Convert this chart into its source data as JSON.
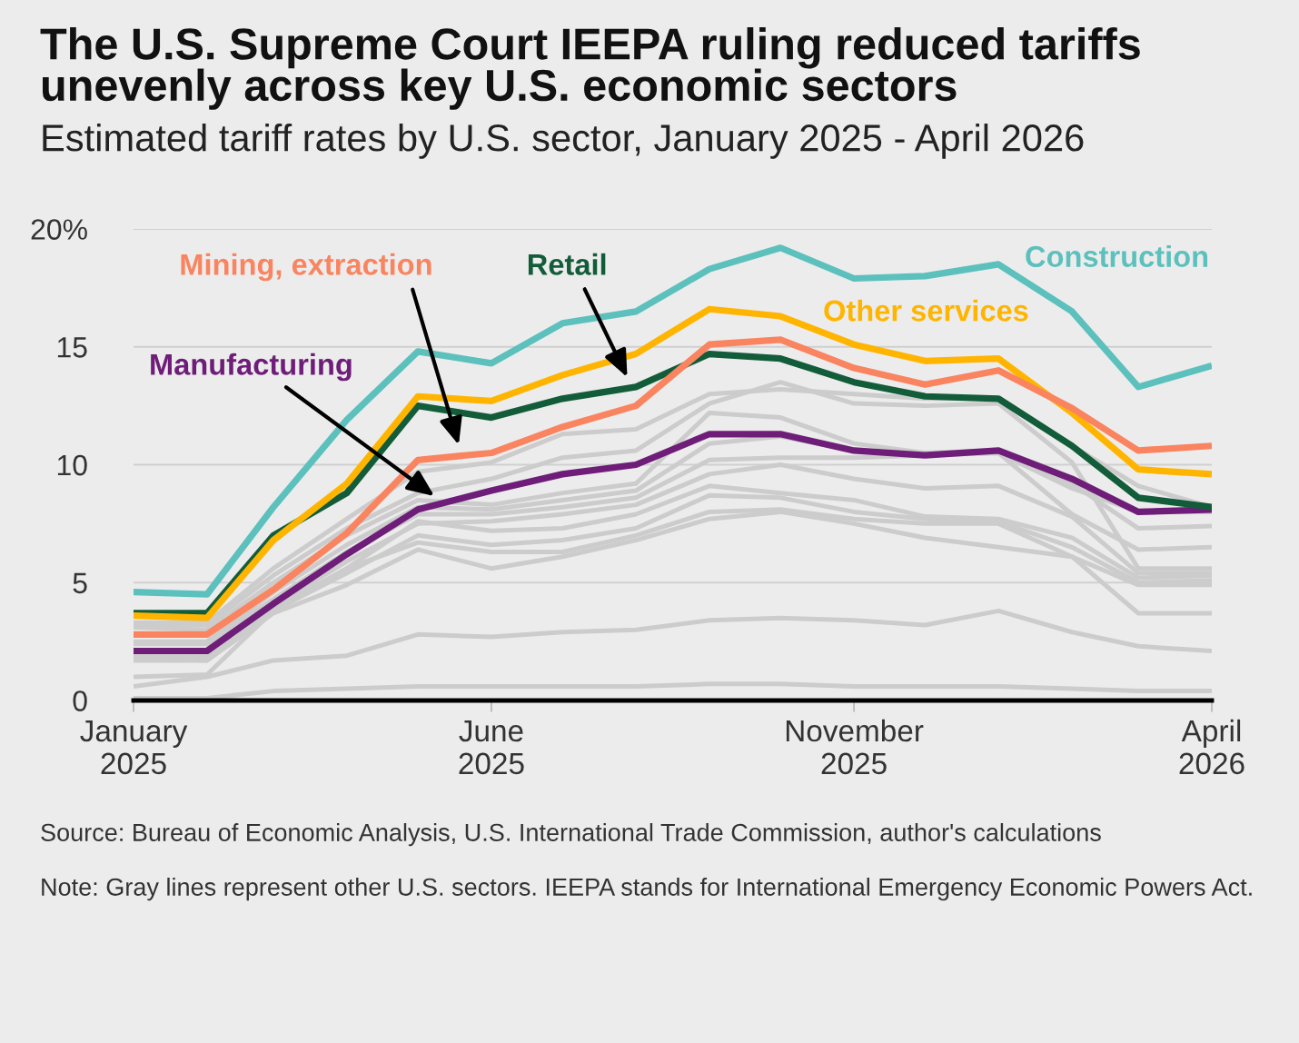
{
  "chart_data": {
    "type": "line",
    "title": "The U.S. Supreme Court IEEPA ruling reduced tariffs unevenly across key U.S. economic sectors",
    "subtitle": "Estimated tariff rates by U.S. sector, January 2025 - April 2026",
    "x": [
      "2025-01",
      "2025-02",
      "2025-03",
      "2025-04",
      "2025-05",
      "2025-06",
      "2025-07",
      "2025-08",
      "2025-09",
      "2025-10",
      "2025-11",
      "2025-12",
      "2026-01",
      "2026-02",
      "2026-03",
      "2026-04"
    ],
    "xlim": [
      "2025-01",
      "2026-04"
    ],
    "xticks": [
      {
        "value": "2025-01",
        "label": "January\n2025"
      },
      {
        "value": "2025-06",
        "label": "June\n2025"
      },
      {
        "value": "2025-11",
        "label": "November\n2025"
      },
      {
        "value": "2026-04",
        "label": "April\n2026"
      }
    ],
    "ylim": [
      0,
      20
    ],
    "yticks": [
      0,
      5,
      10,
      15,
      {
        "value": 20,
        "label": "20%"
      }
    ],
    "grid": "y",
    "line_style": "solid",
    "series": [
      {
        "color": "#cccccc",
        "values": [
          3.3,
          3.3,
          5.6,
          7.7,
          9.7,
          10.1,
          11.3,
          11.5,
          13.0,
          13.2,
          13.0,
          12.8,
          12.8,
          10.8,
          9.1,
          8.2
        ]
      },
      {
        "color": "#cccccc",
        "values": [
          3.2,
          3.2,
          5.3,
          7.3,
          8.8,
          9.4,
          10.3,
          10.6,
          12.6,
          13.5,
          12.6,
          12.5,
          12.6,
          10.1,
          5.6,
          5.6
        ]
      },
      {
        "color": "#cccccc",
        "values": [
          3.1,
          3.0,
          5.0,
          7.0,
          8.5,
          8.3,
          8.8,
          9.2,
          12.2,
          12.0,
          10.9,
          10.5,
          10.6,
          9.2,
          7.3,
          7.4
        ]
      },
      {
        "color": "#cccccc",
        "values": [
          2.5,
          2.5,
          4.6,
          6.6,
          8.2,
          8.1,
          8.5,
          8.9,
          10.9,
          11.2,
          10.6,
          10.4,
          10.5,
          9.0,
          8.0,
          8.0
        ]
      },
      {
        "color": "#cccccc",
        "values": [
          2.4,
          2.4,
          4.3,
          6.3,
          7.9,
          7.9,
          8.2,
          8.6,
          10.2,
          10.3,
          10.3,
          10.4,
          10.5,
          7.9,
          6.4,
          6.5
        ]
      },
      {
        "color": "#cccccc",
        "values": [
          1.9,
          1.9,
          4.0,
          5.9,
          7.5,
          7.6,
          7.9,
          8.3,
          9.6,
          10.0,
          9.4,
          9.0,
          9.1,
          7.8,
          5.4,
          5.4
        ]
      },
      {
        "color": "#cccccc",
        "values": [
          1.8,
          1.8,
          3.9,
          5.6,
          7.6,
          7.2,
          7.3,
          7.9,
          9.1,
          8.8,
          8.5,
          7.8,
          7.7,
          6.9,
          5.2,
          5.3
        ]
      },
      {
        "color": "#cccccc",
        "values": [
          1.7,
          1.7,
          3.8,
          5.4,
          7.0,
          6.6,
          6.8,
          7.3,
          8.7,
          8.6,
          8.0,
          7.7,
          7.6,
          6.5,
          5.0,
          5.1
        ]
      },
      {
        "color": "#cccccc",
        "values": [
          1.0,
          1.1,
          3.8,
          5.6,
          6.7,
          6.3,
          6.3,
          7.0,
          8.0,
          8.1,
          7.7,
          7.5,
          7.5,
          6.1,
          4.9,
          4.9
        ]
      },
      {
        "color": "#cccccc",
        "values": [
          1.8,
          1.7,
          3.7,
          4.9,
          6.4,
          5.6,
          6.1,
          6.8,
          7.7,
          8.0,
          7.5,
          6.9,
          6.5,
          6.1,
          3.7,
          3.7
        ]
      },
      {
        "color": "#cccccc",
        "values": [
          0.6,
          1.0,
          1.7,
          1.9,
          2.8,
          2.7,
          2.9,
          3.0,
          3.4,
          3.5,
          3.4,
          3.2,
          3.8,
          2.9,
          2.3,
          2.1
        ]
      },
      {
        "color": "#cccccc",
        "values": [
          0.1,
          0.1,
          0.4,
          0.5,
          0.6,
          0.6,
          0.6,
          0.6,
          0.7,
          0.7,
          0.6,
          0.6,
          0.6,
          0.5,
          0.4,
          0.4
        ]
      },
      {
        "name": "Manufacturing",
        "color": "#6e1d78",
        "values": [
          2.1,
          2.1,
          4.1,
          6.2,
          8.1,
          8.9,
          9.6,
          10.0,
          11.3,
          11.3,
          10.6,
          10.4,
          10.6,
          9.4,
          8.0,
          8.1
        ]
      },
      {
        "name": "Retail",
        "color": "#125c3a",
        "values": [
          3.7,
          3.7,
          7.0,
          8.8,
          12.5,
          12.0,
          12.8,
          13.3,
          14.7,
          14.5,
          13.5,
          12.9,
          12.8,
          10.8,
          8.6,
          8.2
        ]
      },
      {
        "name": "Other services",
        "color": "#ffb500",
        "values": [
          3.6,
          3.5,
          6.8,
          9.2,
          12.9,
          12.7,
          13.8,
          14.7,
          16.6,
          16.3,
          15.1,
          14.4,
          14.5,
          12.2,
          9.8,
          9.6
        ]
      },
      {
        "name": "Mining, extraction",
        "color": "#f9845f",
        "values": [
          2.8,
          2.8,
          4.7,
          7.1,
          10.2,
          10.5,
          11.6,
          12.5,
          15.1,
          15.3,
          14.1,
          13.4,
          14.0,
          12.4,
          10.6,
          10.8
        ]
      },
      {
        "name": "Construction",
        "color": "#5cc0bd",
        "values": [
          4.6,
          4.5,
          8.2,
          11.9,
          14.8,
          14.3,
          16.0,
          16.5,
          18.3,
          19.2,
          17.9,
          18.0,
          18.5,
          16.5,
          13.3,
          14.2
        ]
      }
    ],
    "annotations": [
      "Source: Bureau of Economic Analysis, U.S. International Trade Commission, author's calculations",
      "Note: Gray lines represent other U.S. sectors. IEEPA stands for International Emergency Economic Powers Act."
    ]
  }
}
